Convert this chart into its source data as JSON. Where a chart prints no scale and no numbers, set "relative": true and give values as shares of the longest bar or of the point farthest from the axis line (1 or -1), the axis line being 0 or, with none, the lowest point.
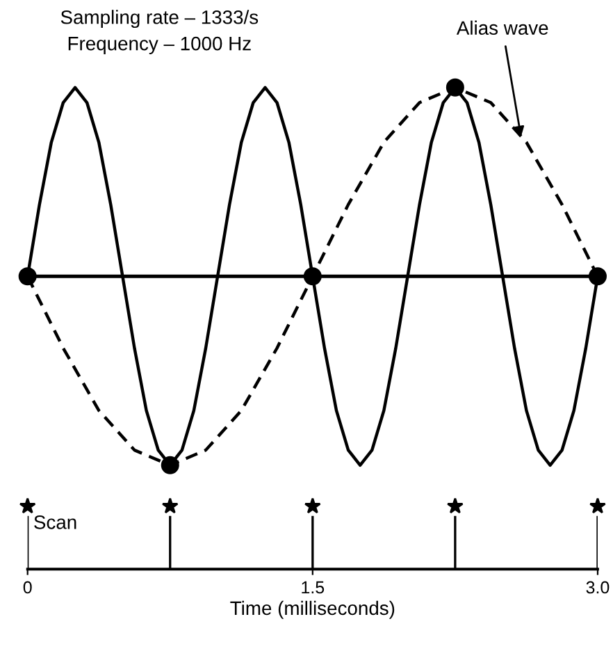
{
  "chart_data": [
    {
      "type": "line",
      "relative": true,
      "xlim": [
        0,
        3.0
      ],
      "tick_labels": false,
      "annotations": [
        "Sampling rate – 1333/s",
        "Frequency – 1000 Hz",
        {
          "text": "Alias wave",
          "x": 2.6,
          "y": 0.72
        }
      ],
      "series": [
        {
          "type": "line",
          "color": "#000000",
          "line_style": "solid",
          "marker": "none",
          "x": [
            0,
            0.0625,
            0.125,
            0.1875,
            0.25,
            0.3125,
            0.375,
            0.4375,
            0.5,
            0.5625,
            0.625,
            0.6875,
            0.75,
            0.8125,
            0.875,
            0.9375,
            1.0,
            1.0625,
            1.125,
            1.1875,
            1.25,
            1.3125,
            1.375,
            1.4375,
            1.5,
            1.5625,
            1.625,
            1.6875,
            1.75,
            1.8125,
            1.875,
            1.9375,
            2.0,
            2.0625,
            2.125,
            2.1875,
            2.25,
            2.3125,
            2.375,
            2.4375,
            2.5,
            2.5625,
            2.625,
            2.6875,
            2.75,
            2.8125,
            2.875,
            2.9375,
            3.0
          ],
          "values": [
            0,
            0.38,
            0.71,
            0.92,
            1,
            0.92,
            0.71,
            0.38,
            0,
            -0.38,
            -0.71,
            -0.92,
            -1,
            -0.92,
            -0.71,
            -0.38,
            0,
            0.38,
            0.71,
            0.92,
            1,
            0.92,
            0.71,
            0.38,
            0,
            -0.38,
            -0.71,
            -0.92,
            -1,
            -0.92,
            -0.71,
            -0.38,
            0,
            0.38,
            0.71,
            0.92,
            1,
            0.92,
            0.71,
            0.38,
            0,
            -0.38,
            -0.71,
            -0.92,
            -1,
            -0.92,
            -0.71,
            -0.38,
            0
          ]
        },
        {
          "type": "line",
          "color": "#000000",
          "line_style": "dashed",
          "marker": "none",
          "x": [
            0,
            0.1875,
            0.375,
            0.5625,
            0.75,
            0.9375,
            1.125,
            1.3125,
            1.5,
            1.6875,
            1.875,
            2.0625,
            2.25,
            2.4375,
            2.625,
            2.8125,
            3.0
          ],
          "values": [
            0,
            -0.38,
            -0.71,
            -0.92,
            -1,
            -0.92,
            -0.71,
            -0.38,
            0,
            0.38,
            0.71,
            0.92,
            1,
            0.92,
            0.71,
            0.38,
            0
          ]
        },
        {
          "type": "scatter",
          "color": "#000000",
          "marker": "circle",
          "x": [
            0,
            0.75,
            1.5,
            2.25,
            3.0
          ],
          "values": [
            0,
            -1,
            0,
            1,
            0
          ]
        }
      ]
    },
    {
      "type": "bar",
      "relative": true,
      "xlim": [
        0,
        3.0
      ],
      "xticks": [
        {
          "value": 0,
          "label": "0"
        },
        {
          "value": 1.5,
          "label": "1.5"
        },
        {
          "value": 3,
          "label": "3.0"
        }
      ],
      "xlabel": "Time (milliseconds)",
      "tick_labels": "x",
      "series": [
        {
          "name": "Scan",
          "color": "#000000",
          "marker": "star",
          "x": [
            0,
            0.75,
            1.5,
            2.25,
            3.0
          ],
          "values": [
            1,
            1,
            1,
            1,
            1
          ]
        }
      ]
    }
  ]
}
